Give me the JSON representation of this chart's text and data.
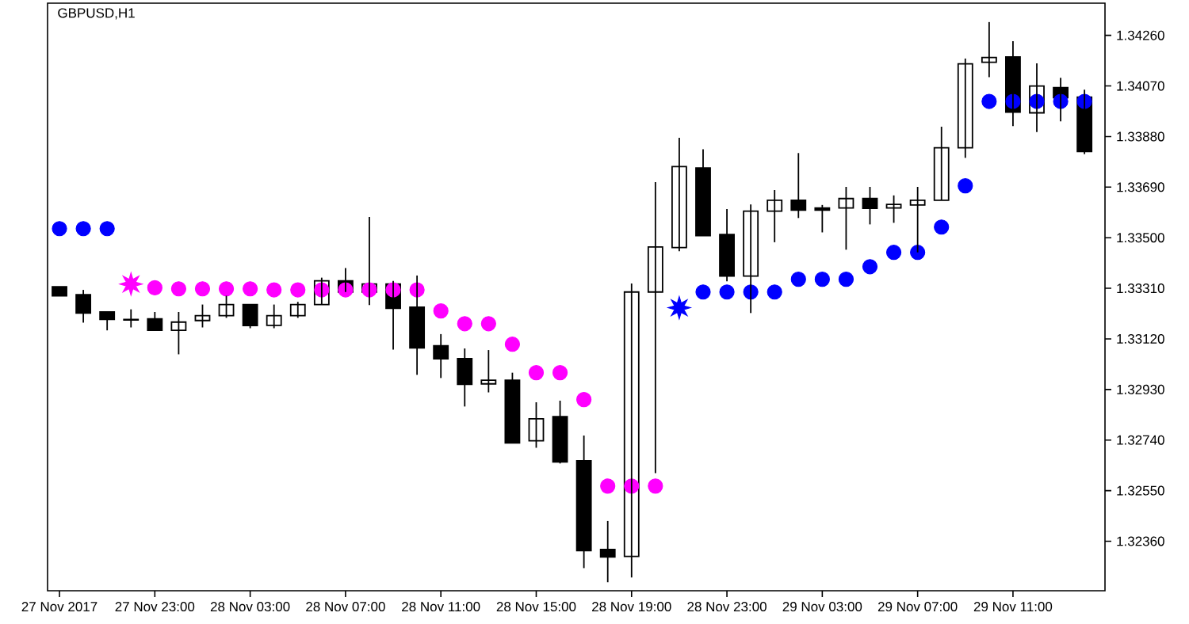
{
  "chart_data": {
    "type": "candlestick",
    "title": "GBPUSD,H1",
    "categories": [
      "27 Nov 2017",
      null,
      null,
      null,
      "27 Nov 23:00",
      null,
      null,
      null,
      "28 Nov 03:00",
      null,
      null,
      null,
      "28 Nov 07:00",
      null,
      null,
      null,
      "28 Nov 11:00",
      null,
      null,
      null,
      "28 Nov 15:00",
      null,
      null,
      null,
      "28 Nov 19:00",
      null,
      null,
      null,
      "28 Nov 23:00",
      null,
      null,
      null,
      "29 Nov 03:00",
      null,
      null,
      null,
      "29 Nov 07:00",
      null,
      null,
      null,
      "29 Nov 11:00",
      null,
      null,
      null
    ],
    "ylim": [
      1.32174,
      1.34381
    ],
    "yticks": [
      {
        "value": 1.3236,
        "label": "1.32360"
      },
      {
        "value": 1.3255,
        "label": "1.32550"
      },
      {
        "value": 1.3274,
        "label": "1.32740"
      },
      {
        "value": 1.3293,
        "label": "1.32930"
      },
      {
        "value": 1.3312,
        "label": "1.33120"
      },
      {
        "value": 1.3331,
        "label": "1.33310"
      },
      {
        "value": 1.335,
        "label": "1.33500"
      },
      {
        "value": 1.3369,
        "label": "1.33690"
      },
      {
        "value": 1.3388,
        "label": "1.33880"
      },
      {
        "value": 1.3407,
        "label": "1.34070"
      },
      {
        "value": 1.3426,
        "label": "1.34260"
      }
    ],
    "series": [
      {
        "type": "candlestick",
        "color": "#000000",
        "ohlc": [
          [
            1.33316,
            1.33316,
            1.33282,
            1.33282
          ],
          [
            1.33286,
            1.33304,
            1.33181,
            1.33217
          ],
          [
            1.33221,
            1.33221,
            1.33152,
            1.33193
          ],
          [
            1.33193,
            1.33231,
            1.33163,
            1.33191
          ],
          [
            1.33195,
            1.33221,
            1.33152,
            1.33152
          ],
          [
            1.33152,
            1.33221,
            1.33062,
            1.33183
          ],
          [
            1.33189,
            1.33249,
            1.33163,
            1.33207
          ],
          [
            1.33207,
            1.33282,
            1.33199,
            1.33249
          ],
          [
            1.33249,
            1.33249,
            1.3316,
            1.3317
          ],
          [
            1.33171,
            1.33249,
            1.3316,
            1.33207
          ],
          [
            1.33207,
            1.33259,
            1.33199,
            1.33249
          ],
          [
            1.33249,
            1.3335,
            1.33249,
            1.33338
          ],
          [
            1.33338,
            1.33386,
            1.33296,
            1.33296
          ],
          [
            1.33296,
            1.33578,
            1.33247,
            1.33326
          ],
          [
            1.33326,
            1.33338,
            1.3308,
            1.33235
          ],
          [
            1.33239,
            1.33358,
            1.32985,
            1.33086
          ],
          [
            1.33094,
            1.33138,
            1.32973,
            1.33045
          ],
          [
            1.33046,
            1.33084,
            1.32866,
            1.32949
          ],
          [
            1.32951,
            1.33078,
            1.32919,
            1.32965
          ],
          [
            1.32965,
            1.32993,
            1.32729,
            1.32729
          ],
          [
            1.32737,
            1.32882,
            1.32711,
            1.3282
          ],
          [
            1.32828,
            1.32888,
            1.32652,
            1.32658
          ],
          [
            1.32662,
            1.32757,
            1.32259,
            1.32325
          ],
          [
            1.32329,
            1.32436,
            1.32206,
            1.32301
          ],
          [
            1.32303,
            1.33328,
            1.32224,
            1.33296
          ],
          [
            1.33296,
            1.33709,
            1.32616,
            1.33465
          ],
          [
            1.33463,
            1.33875,
            1.33449,
            1.33767
          ],
          [
            1.33762,
            1.33832,
            1.33508,
            1.33508
          ],
          [
            1.33512,
            1.33608,
            1.33336,
            1.33356
          ],
          [
            1.33356,
            1.33625,
            1.33217,
            1.336
          ],
          [
            1.336,
            1.33679,
            1.33483,
            1.33641
          ],
          [
            1.33641,
            1.33818,
            1.33574,
            1.33604
          ],
          [
            1.33612,
            1.33623,
            1.3352,
            1.33604
          ],
          [
            1.33612,
            1.33691,
            1.33455,
            1.33647
          ],
          [
            1.33647,
            1.33691,
            1.3355,
            1.3361
          ],
          [
            1.33612,
            1.33659,
            1.33556,
            1.33625
          ],
          [
            1.33623,
            1.33691,
            1.33445,
            1.33641
          ],
          [
            1.33641,
            1.33917,
            1.33641,
            1.33838
          ],
          [
            1.33838,
            1.34173,
            1.338,
            1.34153
          ],
          [
            1.34159,
            1.3431,
            1.34103,
            1.34177
          ],
          [
            1.34179,
            1.34238,
            1.33919,
            1.33972
          ],
          [
            1.33969,
            1.34155,
            1.33897,
            1.3407
          ],
          [
            1.34064,
            1.34101,
            1.33937,
            1.34026
          ],
          [
            1.34028,
            1.34056,
            1.33814,
            1.33824
          ]
        ]
      },
      {
        "type": "scatter",
        "color": "#0000ff",
        "marker": "circle",
        "values": [
          1.33534,
          1.33534,
          1.33534,
          null,
          null,
          null,
          null,
          null,
          null,
          null,
          null,
          null,
          null,
          null,
          null,
          null,
          null,
          null,
          null,
          null,
          null,
          null,
          null,
          null,
          null,
          null,
          null,
          1.33296,
          1.33296,
          1.33296,
          1.33296,
          1.33344,
          1.33344,
          1.33344,
          1.33391,
          1.33445,
          1.33445,
          1.3354,
          1.33695,
          1.34012,
          1.34012,
          1.34012,
          1.34012,
          1.34012
        ]
      },
      {
        "type": "scatter",
        "color": "#ff00ff",
        "marker": "circle",
        "values": [
          null,
          null,
          null,
          null,
          1.33312,
          1.33308,
          1.33308,
          1.33308,
          1.33308,
          1.33304,
          1.33304,
          1.33304,
          1.33304,
          1.33304,
          1.33304,
          1.33304,
          1.33225,
          1.33177,
          1.33177,
          1.331,
          1.32993,
          1.32993,
          1.32892,
          1.32567,
          1.32567,
          1.32567,
          null,
          null,
          null,
          null,
          null,
          null,
          null,
          null,
          null,
          null,
          null,
          null,
          null,
          null,
          null,
          null,
          null,
          null
        ]
      },
      {
        "type": "scatter",
        "color": "#0000ff",
        "marker": "star",
        "values": [
          null,
          null,
          null,
          null,
          null,
          null,
          null,
          null,
          null,
          null,
          null,
          null,
          null,
          null,
          null,
          null,
          null,
          null,
          null,
          null,
          null,
          null,
          null,
          null,
          null,
          null,
          1.33237,
          null,
          null,
          null,
          null,
          null,
          null,
          null,
          null,
          null,
          null,
          null,
          null,
          null,
          null,
          null,
          null,
          null
        ]
      },
      {
        "type": "scatter",
        "color": "#ff00ff",
        "marker": "star",
        "values": [
          null,
          null,
          null,
          1.33326,
          null,
          null,
          null,
          null,
          null,
          null,
          null,
          null,
          null,
          null,
          null,
          null,
          null,
          null,
          null,
          null,
          null,
          null,
          null,
          null,
          null,
          null,
          null,
          null,
          null,
          null,
          null,
          null,
          null,
          null,
          null,
          null,
          null,
          null,
          null,
          null,
          null,
          null,
          null,
          null
        ]
      }
    ]
  }
}
